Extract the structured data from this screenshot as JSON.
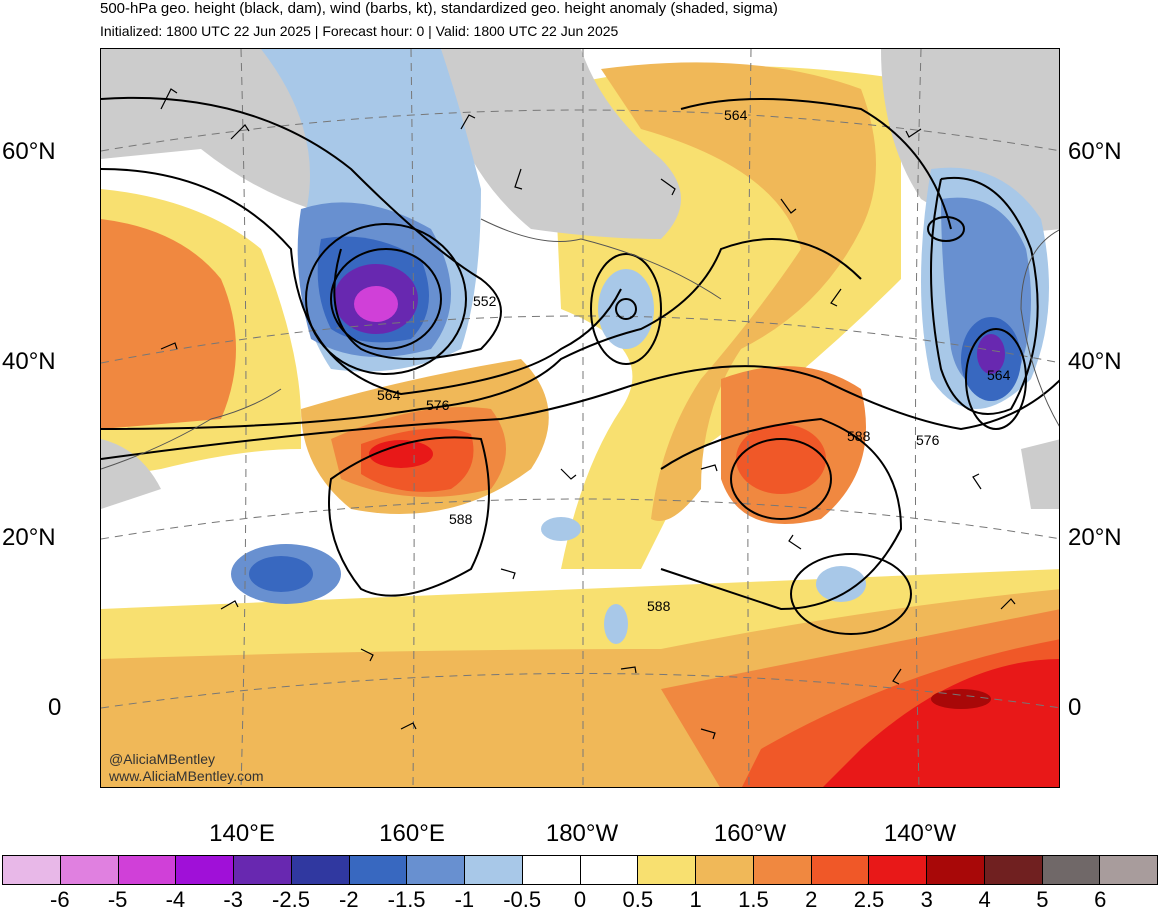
{
  "header": {
    "title": "500-hPa geo. height (black, dam), wind (barbs, kt), standardized geo. height anomaly (shaded, sigma)",
    "subtitle": "Initialized: 1800 UTC 22 Jun 2025 | Forecast hour: 0 | Valid: 1800 UTC 22 Jun 2025"
  },
  "map": {
    "left_lat_labels": [
      "60°N",
      "40°N",
      "20°N",
      "0"
    ],
    "right_lat_labels": [
      "60°N",
      "40°N",
      "20°N",
      "0"
    ],
    "lon_labels": [
      "140°E",
      "160°E",
      "180°W",
      "160°W",
      "140°W"
    ],
    "contour_labels": [
      "564",
      "552",
      "564",
      "576",
      "588",
      "588",
      "588",
      "564",
      "576"
    ],
    "watermark_handle": "@AliciaMBentley",
    "watermark_url": "www.AliciaMBentley.com",
    "land_color": "#cccccc"
  },
  "colorbar": {
    "labels": [
      "-6",
      "-5",
      "-4",
      "-3",
      "-2.5",
      "-2",
      "-1.5",
      "-1",
      "-0.5",
      "0",
      "0.5",
      "1",
      "1.5",
      "2",
      "2.5",
      "3",
      "4",
      "5",
      "6"
    ],
    "colors": [
      "#e8b8e8",
      "#e080e0",
      "#d040d8",
      "#a010d8",
      "#6828b0",
      "#3038a0",
      "#3868c0",
      "#6890d0",
      "#a8c8e8",
      "#ffffff",
      "#ffffff",
      "#f8e070",
      "#f0b858",
      "#f08840",
      "#f05828",
      "#e81818",
      "#a80808",
      "#702020",
      "#706868",
      "#a89c9c"
    ]
  }
}
